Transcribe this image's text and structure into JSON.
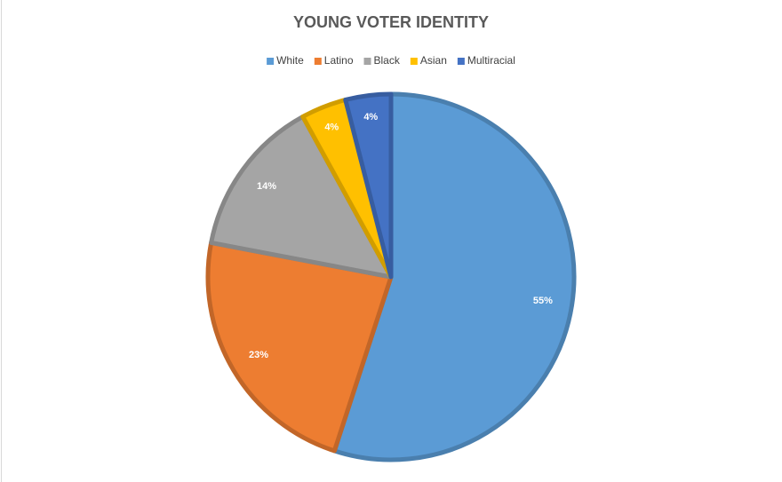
{
  "chart_data": {
    "type": "pie",
    "title": "YOUNG VOTER IDENTITY",
    "categories": [
      "White",
      "Latino",
      "Black",
      "Asian",
      "Multiracial"
    ],
    "values": [
      55,
      23,
      14,
      4,
      4
    ],
    "value_labels": [
      "55%",
      "23%",
      "14%",
      "4%",
      "4%"
    ],
    "colors": [
      "#5b9bd5",
      "#ed7d31",
      "#a5a5a5",
      "#ffc000",
      "#4472c4"
    ],
    "legend": "top"
  }
}
